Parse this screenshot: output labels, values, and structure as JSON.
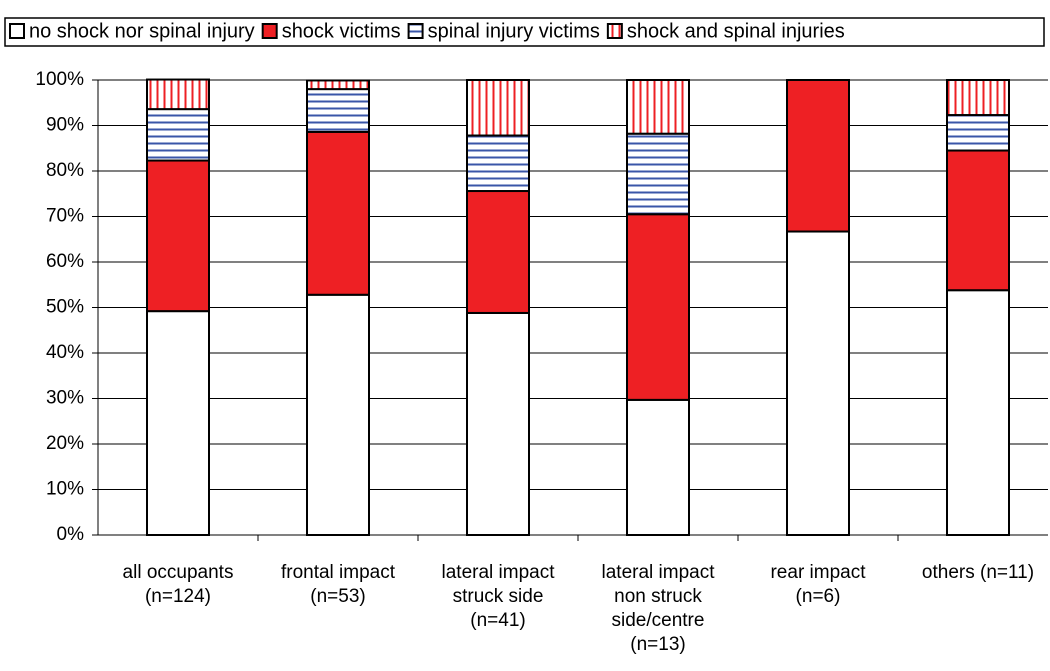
{
  "chart_data": {
    "type": "stacked_bar",
    "categories": [
      [
        "all occupants",
        "(n=124)"
      ],
      [
        "frontal impact",
        "(n=53)"
      ],
      [
        "lateral impact",
        "struck side",
        "(n=41)"
      ],
      [
        "lateral impact",
        "non struck",
        "side/centre",
        "(n=13)"
      ],
      [
        "rear impact",
        "(n=6)"
      ],
      [
        "others (n=11)"
      ]
    ],
    "series": [
      {
        "name": "no shock nor spinal injury",
        "color": "#ffffff",
        "pattern": "solid",
        "values": [
          49.2,
          52.8,
          48.8,
          29.7,
          66.7,
          53.8
        ]
      },
      {
        "name": "shock victims",
        "color": "#ee2024",
        "pattern": "solid",
        "values": [
          33.1,
          35.8,
          26.8,
          40.8,
          33.3,
          30.7
        ]
      },
      {
        "name": "spinal injury victims",
        "color": "#3a56a8",
        "pattern": "horizontal",
        "values": [
          11.3,
          9.4,
          12.2,
          17.7,
          0,
          7.8
        ]
      },
      {
        "name": "shock and spinal injuries",
        "color": "#ee2024",
        "pattern": "vertical",
        "values": [
          6.5,
          1.9,
          12.2,
          11.8,
          0,
          7.7
        ]
      }
    ],
    "ylim": [
      0,
      100
    ],
    "yticks": [
      {
        "value": 0,
        "label": "0%"
      },
      {
        "value": 10,
        "label": "10%"
      },
      {
        "value": 20,
        "label": "20%"
      },
      {
        "value": 30,
        "label": "30%"
      },
      {
        "value": 40,
        "label": "40%"
      },
      {
        "value": 50,
        "label": "50%"
      },
      {
        "value": 60,
        "label": "60%"
      },
      {
        "value": 70,
        "label": "70%"
      },
      {
        "value": 80,
        "label": "80%"
      },
      {
        "value": 90,
        "label": "90%"
      },
      {
        "value": 100,
        "label": "100%"
      }
    ],
    "grid": true,
    "legend": "top"
  }
}
